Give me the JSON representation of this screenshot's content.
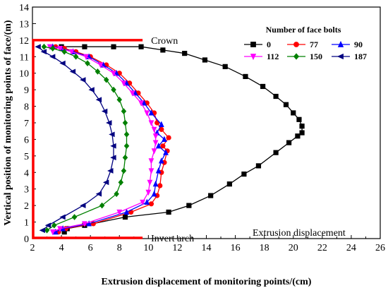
{
  "chart_data": {
    "type": "line",
    "xlabel": "Extrusion displacement of monitoring points/(cm)",
    "ylabel": "Vertical position of monitoring points of face/(m)",
    "xlim": [
      2,
      26
    ],
    "ylim": [
      0,
      14
    ],
    "xticks": [
      2,
      4,
      6,
      8,
      10,
      12,
      14,
      16,
      18,
      20,
      22,
      24,
      26
    ],
    "yticks": [
      0,
      1,
      2,
      3,
      4,
      5,
      6,
      7,
      8,
      9,
      10,
      11,
      12,
      13,
      14
    ],
    "legend": {
      "title": "Number of face bolts",
      "placement": "top-right"
    },
    "annotations": {
      "crown": "Crown",
      "invert": "Invert arch",
      "note": "Extrusion displacement"
    },
    "tunnel_outline": {
      "color": "#ff0000",
      "top_y": 12,
      "bottom_y": 0,
      "left_x": 2,
      "right_x": 9.6
    },
    "series": [
      {
        "name": "0",
        "color": "#000000",
        "marker": "square",
        "x": [
          4.2,
          4.4,
          5.6,
          8.4,
          11.4,
          12.8,
          14.3,
          15.6,
          16.6,
          17.6,
          18.8,
          19.7,
          20.3,
          20.6,
          20.6,
          20.4,
          20.0,
          19.5,
          18.8,
          17.9,
          16.7,
          15.3,
          13.9,
          12.5,
          11.0,
          9.5,
          7.6,
          5.6,
          4.0
        ],
        "y": [
          0.4,
          0.6,
          0.8,
          1.3,
          1.6,
          2.0,
          2.6,
          3.3,
          3.9,
          4.4,
          5.2,
          5.8,
          6.2,
          6.4,
          6.8,
          7.2,
          7.6,
          8.1,
          8.6,
          9.2,
          9.8,
          10.4,
          10.8,
          11.2,
          11.4,
          11.6,
          11.6,
          11.6,
          11.6
        ]
      },
      {
        "name": "77",
        "color": "#ff0000",
        "marker": "circle",
        "x": [
          3.8,
          4.3,
          6.2,
          8.8,
          10.2,
          10.6,
          10.8,
          10.9,
          11.1,
          11.3,
          11.0,
          11.4,
          10.9,
          10.6,
          10.4,
          9.9,
          9.3,
          8.7,
          8.0,
          7.1,
          6.0,
          5.0,
          4.2,
          3.6
        ],
        "y": [
          0.4,
          0.6,
          0.9,
          1.6,
          2.1,
          2.6,
          3.2,
          4.0,
          4.6,
          5.3,
          5.6,
          6.1,
          6.6,
          7.0,
          7.6,
          8.2,
          8.8,
          9.4,
          10.0,
          10.5,
          11.0,
          11.3,
          11.5,
          11.6
        ]
      },
      {
        "name": "90",
        "color": "#0000ff",
        "marker": "triangle-up",
        "x": [
          3.6,
          4.1,
          5.9,
          8.5,
          9.9,
          10.4,
          10.5,
          10.7,
          10.9,
          11.2,
          10.7,
          11.1,
          10.6,
          10.9,
          10.2,
          9.7,
          9.1,
          8.5,
          7.8,
          6.9,
          5.9,
          4.8,
          4.0,
          3.4
        ],
        "y": [
          0.4,
          0.6,
          0.9,
          1.6,
          2.2,
          2.7,
          3.3,
          4.1,
          4.7,
          5.2,
          5.6,
          6.0,
          6.4,
          6.9,
          7.6,
          8.2,
          8.8,
          9.4,
          10.0,
          10.5,
          11.0,
          11.3,
          11.5,
          11.6
        ]
      },
      {
        "name": "112",
        "color": "#ff00ff",
        "marker": "triangle-down",
        "x": [
          3.4,
          3.9,
          5.6,
          8.0,
          9.6,
          10.0,
          10.1,
          10.2,
          10.2,
          10.4,
          10.5,
          10.5,
          10.4,
          10.2,
          9.9,
          9.5,
          8.9,
          8.3,
          7.6,
          6.7,
          5.7,
          4.7,
          3.9,
          3.2
        ],
        "y": [
          0.4,
          0.6,
          0.9,
          1.6,
          2.2,
          2.8,
          3.4,
          4.1,
          4.7,
          5.3,
          5.8,
          6.2,
          6.6,
          7.0,
          7.6,
          8.2,
          8.8,
          9.4,
          10.0,
          10.5,
          11.0,
          11.3,
          11.5,
          11.6
        ]
      },
      {
        "name": "150",
        "color": "#008000",
        "marker": "diamond",
        "x": [
          3.0,
          3.5,
          4.9,
          6.8,
          7.8,
          8.1,
          8.3,
          8.4,
          8.5,
          8.5,
          8.4,
          8.3,
          8.0,
          7.6,
          7.1,
          6.5,
          5.8,
          5.0,
          4.2,
          3.4,
          2.8
        ],
        "y": [
          0.5,
          0.8,
          1.3,
          2.0,
          2.7,
          3.4,
          4.1,
          4.9,
          5.6,
          6.3,
          7.0,
          7.7,
          8.4,
          9.0,
          9.6,
          10.1,
          10.6,
          11.0,
          11.3,
          11.5,
          11.6
        ]
      },
      {
        "name": "187",
        "color": "#000080",
        "marker": "triangle-left",
        "x": [
          2.7,
          3.1,
          4.1,
          5.5,
          6.6,
          7.1,
          7.4,
          7.6,
          7.6,
          7.5,
          7.3,
          7.0,
          6.6,
          6.1,
          5.5,
          4.8,
          4.1,
          3.4,
          2.8,
          2.4
        ],
        "y": [
          0.5,
          0.8,
          1.3,
          2.0,
          2.7,
          3.4,
          4.1,
          4.9,
          5.6,
          6.3,
          7.0,
          7.7,
          8.4,
          9.0,
          9.6,
          10.1,
          10.6,
          11.0,
          11.3,
          11.6
        ]
      }
    ]
  }
}
